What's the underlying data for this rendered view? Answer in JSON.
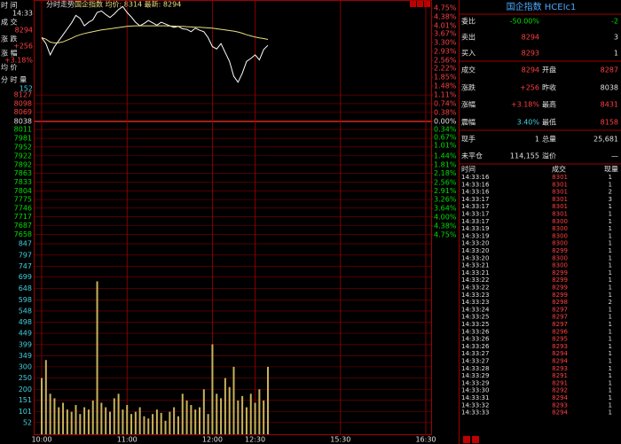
{
  "header": {
    "title": "分时走势",
    "info": "国企指数 均价: 8314 最新: 8294"
  },
  "left_panel": [
    {
      "label": "时 间",
      "value": "14:33"
    },
    {
      "label": "成 交",
      "value": "8294"
    },
    {
      "label": "涨 跌",
      "value": "+256"
    },
    {
      "label": "涨 幅",
      "value": "+3.18%"
    },
    {
      "label": "均 价"
    },
    {
      "label": "分 时 量",
      "value": "152"
    }
  ],
  "chart_data": [
    {
      "type": "line",
      "x": [
        0,
        3,
        6,
        9,
        12,
        15,
        18,
        21,
        24,
        27,
        30,
        33,
        36,
        39,
        42,
        45,
        48,
        51,
        54,
        57,
        60,
        63,
        66,
        69,
        72,
        75,
        78,
        81,
        84,
        87,
        90,
        93,
        96,
        99,
        102,
        105,
        108,
        111,
        114,
        117,
        120,
        123,
        126,
        129,
        132,
        135,
        138,
        141,
        144,
        147,
        150,
        153,
        156,
        159
      ],
      "xlim": [
        0,
        270
      ],
      "ylim": [
        7656,
        8420
      ],
      "yticks": [
        8127,
        8098,
        8069,
        8038,
        8011,
        7981,
        7952,
        7922,
        7892,
        7863,
        7833,
        7804,
        7775,
        7746,
        7717,
        7687,
        7658
      ],
      "y2lim": [
        -4.75,
        4.75
      ],
      "y2ticks": [
        {
          "value": 4.75,
          "label": "4.75%"
        },
        {
          "value": 4.38,
          "label": "4.38%"
        },
        {
          "value": 4.01,
          "label": "4.01%"
        },
        {
          "value": 3.67,
          "label": "3.67%"
        },
        {
          "value": 3.3,
          "label": "3.30%"
        },
        {
          "value": 2.93,
          "label": "2.93%"
        },
        {
          "value": 2.56,
          "label": "2.56%"
        },
        {
          "value": 2.22,
          "label": "2.22%"
        },
        {
          "value": 1.85,
          "label": "1.85%"
        },
        {
          "value": 1.48,
          "label": "1.48%"
        },
        {
          "value": 1.11,
          "label": "1.11%"
        },
        {
          "value": 0.74,
          "label": "0.74%"
        },
        {
          "value": 0.38,
          "label": "0.38%"
        },
        {
          "value": 0,
          "label": "0.00%"
        },
        {
          "value": -0.34,
          "label": "0.34%"
        },
        {
          "value": -0.67,
          "label": "0.67%"
        },
        {
          "value": -1.01,
          "label": "1.01%"
        },
        {
          "value": -1.44,
          "label": "1.44%"
        },
        {
          "value": -1.81,
          "label": "1.81%"
        },
        {
          "value": -2.18,
          "label": "2.18%"
        },
        {
          "value": -2.56,
          "label": "2.56%"
        },
        {
          "value": -2.91,
          "label": "2.91%"
        },
        {
          "value": -3.26,
          "label": "3.26%"
        },
        {
          "value": -3.64,
          "label": "3.64%"
        },
        {
          "value": -4.0,
          "label": "4.00%"
        },
        {
          "value": -4.38,
          "label": "4.38%"
        },
        {
          "value": -4.75,
          "label": "4.75%"
        }
      ],
      "grid": true,
      "series": [
        {
          "color": "#ffffff",
          "values": [
            8320,
            8300,
            8262,
            8290,
            8310,
            8330,
            8350,
            8370,
            8395,
            8385,
            8360,
            8372,
            8380,
            8405,
            8410,
            8398,
            8388,
            8400,
            8415,
            8425,
            8405,
            8390,
            8372,
            8360,
            8368,
            8378,
            8370,
            8362,
            8372,
            8366,
            8360,
            8355,
            8358,
            8350,
            8348,
            8340,
            8352,
            8345,
            8340,
            8320,
            8290,
            8282,
            8300,
            8270,
            8240,
            8190,
            8170,
            8200,
            8240,
            8250,
            8262,
            8245,
            8280,
            8294
          ]
        },
        {
          "color": "#e8e080",
          "values": [
            8320,
            8315,
            8305,
            8302,
            8303,
            8306,
            8312,
            8318,
            8325,
            8330,
            8334,
            8337,
            8340,
            8343,
            8346,
            8348,
            8350,
            8352,
            8354,
            8356,
            8358,
            8359,
            8360,
            8360,
            8360,
            8360,
            8360,
            8360,
            8360,
            8360,
            8359,
            8359,
            8358,
            8358,
            8357,
            8356,
            8355,
            8355,
            8354,
            8353,
            8352,
            8350,
            8348,
            8346,
            8344,
            8342,
            8339,
            8335,
            8330,
            8326,
            8322,
            8319,
            8317,
            8314
          ]
        }
      ]
    },
    {
      "type": "bar",
      "x": [
        0,
        3,
        6,
        9,
        12,
        15,
        18,
        21,
        24,
        27,
        30,
        33,
        36,
        39,
        42,
        45,
        48,
        51,
        54,
        57,
        60,
        63,
        66,
        69,
        72,
        75,
        78,
        81,
        84,
        87,
        90,
        93,
        96,
        99,
        102,
        105,
        108,
        111,
        114,
        117,
        120,
        123,
        126,
        129,
        132,
        135,
        138,
        141,
        144,
        147,
        150,
        153,
        156,
        159
      ],
      "xlim": [
        0,
        270
      ],
      "xticks": [
        {
          "value": 0,
          "label": "10:00"
        },
        {
          "value": 60,
          "label": "11:00"
        },
        {
          "value": 120,
          "label": "12:00"
        },
        {
          "value": 150,
          "label": "12:30"
        },
        {
          "value": 210,
          "label": "15:30"
        },
        {
          "value": 270,
          "label": "16:30"
        }
      ],
      "ylim": [
        0,
        875
      ],
      "yticks": [
        52,
        101,
        151,
        200,
        250,
        300,
        349,
        399,
        449,
        498,
        548,
        598,
        648,
        699,
        747,
        797,
        847
      ],
      "grid": true,
      "color": "#c9b25a",
      "values": [
        250,
        330,
        180,
        160,
        120,
        140,
        110,
        100,
        130,
        90,
        120,
        110,
        150,
        680,
        140,
        120,
        100,
        160,
        180,
        110,
        130,
        90,
        100,
        120,
        80,
        70,
        90,
        110,
        95,
        60,
        100,
        120,
        80,
        180,
        150,
        130,
        110,
        120,
        200,
        90,
        400,
        180,
        160,
        250,
        210,
        300,
        150,
        170,
        120,
        180,
        140,
        200,
        150,
        300
      ]
    }
  ],
  "quote": {
    "title": "国企指数 HCEIc1",
    "rows": [
      [
        "委比",
        "-50.00%",
        "-2"
      ],
      [
        "卖出",
        "8294",
        "3"
      ],
      [
        "买入",
        "8293",
        "1"
      ],
      [
        "成交",
        "8294",
        "开盘",
        "8287"
      ],
      [
        "涨跌",
        "+256",
        "昨收",
        "8038"
      ],
      [
        "涨幅",
        "+3.18%",
        "最高",
        "8431"
      ],
      [
        "震幅",
        "3.40%",
        "最低",
        "8158"
      ],
      [
        "现手",
        "1",
        "总量",
        "25,681"
      ],
      [
        "未平仓",
        "114,155",
        "溢价",
        "—"
      ]
    ]
  },
  "ticks": {
    "header": [
      "时间",
      "成交",
      "现量"
    ],
    "rows": [
      [
        "14:33:16",
        "8301",
        "1"
      ],
      [
        "14:33:16",
        "8301",
        "1"
      ],
      [
        "14:33:16",
        "8301",
        "2"
      ],
      [
        "14:33:17",
        "8301",
        "3"
      ],
      [
        "14:33:17",
        "8301",
        "1"
      ],
      [
        "14:33:17",
        "8301",
        "1"
      ],
      [
        "14:33:17",
        "8300",
        "1"
      ],
      [
        "14:33:19",
        "8300",
        "1"
      ],
      [
        "14:33:19",
        "8300",
        "1"
      ],
      [
        "14:33:20",
        "8300",
        "1"
      ],
      [
        "14:33:20",
        "8299",
        "1"
      ],
      [
        "14:33:20",
        "8300",
        "1"
      ],
      [
        "14:33:21",
        "8300",
        "1"
      ],
      [
        "14:33:21",
        "8299",
        "1"
      ],
      [
        "14:33:22",
        "8299",
        "1"
      ],
      [
        "14:33:22",
        "8299",
        "1"
      ],
      [
        "14:33:23",
        "8299",
        "1"
      ],
      [
        "14:33:23",
        "8298",
        "2"
      ],
      [
        "14:33:24",
        "8297",
        "1"
      ],
      [
        "14:33:25",
        "8297",
        "1"
      ],
      [
        "14:33:25",
        "8297",
        "1"
      ],
      [
        "14:33:26",
        "8296",
        "1"
      ],
      [
        "14:33:26",
        "8295",
        "1"
      ],
      [
        "14:33:26",
        "8293",
        "1"
      ],
      [
        "14:33:27",
        "8294",
        "1"
      ],
      [
        "14:33:27",
        "8294",
        "1"
      ],
      [
        "14:33:28",
        "8293",
        "1"
      ],
      [
        "14:33:29",
        "8291",
        "1"
      ],
      [
        "14:33:29",
        "8291",
        "1"
      ],
      [
        "14:33:30",
        "8292",
        "1"
      ],
      [
        "14:33:31",
        "8294",
        "1"
      ],
      [
        "14:33:32",
        "8293",
        "1"
      ],
      [
        "14:33:33",
        "8294",
        "1"
      ]
    ]
  }
}
